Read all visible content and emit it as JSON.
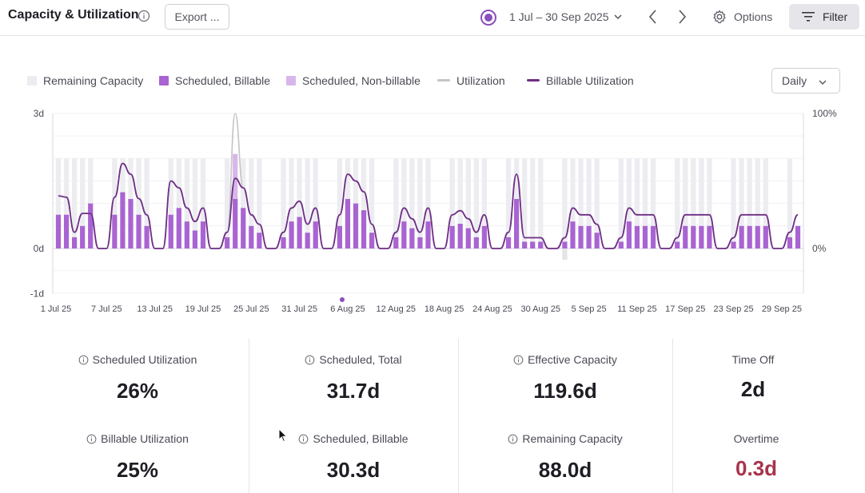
{
  "header": {
    "title": "Capacity & Utilization",
    "export_label": "Export ...",
    "date_range": "1 Jul – 30 Sep 2025",
    "options_label": "Options",
    "filter_label": "Filter"
  },
  "legend": {
    "remaining": "Remaining Capacity",
    "billable": "Scheduled, Billable",
    "nonbillable": "Scheduled, Non-billable",
    "utilization": "Utilization",
    "billable_util": "Billable Utilization"
  },
  "granularity": "Daily",
  "colors": {
    "remaining": "#ececf1",
    "billable": "#a964d2",
    "nonbillable": "#d8b6eb",
    "utilization": "#c4c4c8",
    "billable_util": "#6f2f86",
    "accent": "#8a4fbe",
    "overtime": "#a8334c"
  },
  "chart_data": {
    "type": "bar",
    "y_left_ticks": [
      "3d",
      "0d",
      "-1d"
    ],
    "y_right_ticks": [
      "100%",
      "0%"
    ],
    "ylim_left": [
      -1,
      3
    ],
    "ylim_right": [
      0,
      100
    ],
    "x_ticks": [
      "1 Jul 25",
      "7 Jul 25",
      "13 Jul 25",
      "19 Jul 25",
      "25 Jul 25",
      "31 Jul 25",
      "6 Aug 25",
      "12 Aug 25",
      "18 Aug 25",
      "24 Aug 25",
      "30 Aug 25",
      "5 Sep 25",
      "11 Sep 25",
      "17 Sep 25",
      "23 Sep 25",
      "29 Sep 25"
    ],
    "series": [
      {
        "name": "Remaining Capacity",
        "values": [
          2,
          2,
          2,
          2,
          2,
          0,
          0,
          2,
          2,
          2,
          2,
          2,
          0,
          0,
          2,
          2,
          2,
          2,
          2,
          0,
          0,
          2,
          2,
          2,
          2,
          2,
          0,
          0,
          2,
          2,
          2,
          2,
          2,
          0,
          0,
          2,
          2,
          2,
          2,
          2,
          0,
          0,
          2,
          2,
          2,
          2,
          2,
          0,
          0,
          2,
          2,
          2,
          2,
          2,
          0,
          0,
          2,
          2,
          2,
          2,
          2,
          0,
          0,
          2,
          2,
          2,
          2,
          2,
          0,
          0,
          2,
          2,
          2,
          2,
          2,
          0,
          0,
          2,
          2,
          2,
          2,
          2,
          0,
          0,
          2,
          2,
          2,
          2,
          2,
          0,
          0,
          2,
          2
        ]
      },
      {
        "name": "Scheduled, Billable",
        "values": [
          0.75,
          0.75,
          0.25,
          0.5,
          1,
          0,
          0,
          0.75,
          1.25,
          1.1,
          0.75,
          0.5,
          0,
          0,
          0.75,
          0.9,
          0.6,
          0.4,
          0.6,
          0,
          0,
          0.25,
          1.1,
          0.9,
          0.5,
          0.35,
          0,
          0,
          0.25,
          0.6,
          0.7,
          0.35,
          0.6,
          0,
          0,
          0.5,
          1.1,
          1,
          0.85,
          0.35,
          0,
          0,
          0.25,
          0.6,
          0.45,
          0.25,
          0.6,
          0,
          0,
          0.5,
          0.55,
          0.45,
          0.25,
          0.5,
          0,
          0,
          0.25,
          1.1,
          0.15,
          0.15,
          0.15,
          0,
          0,
          0.15,
          0.6,
          0.5,
          0.5,
          0.35,
          0,
          0,
          0.15,
          0.6,
          0.5,
          0.5,
          0.5,
          0,
          0,
          0.15,
          0.5,
          0.5,
          0.5,
          0.5,
          0,
          0,
          0.15,
          0.5,
          0.5,
          0.5,
          0.5,
          0,
          0,
          0.25,
          0.5
        ]
      },
      {
        "name": "Scheduled, Non-billable",
        "values": [
          0,
          0,
          0,
          0,
          0,
          0,
          0,
          0,
          0,
          0,
          0,
          0,
          0,
          0,
          0,
          0,
          0,
          0,
          0,
          0,
          0,
          0,
          1,
          0,
          0,
          0,
          0,
          0,
          0,
          0,
          0,
          0,
          0,
          0,
          0,
          0,
          0,
          0,
          0,
          0,
          0,
          0,
          0,
          0,
          0,
          0,
          0,
          0,
          0,
          0,
          0,
          0,
          0,
          0,
          0,
          0,
          0,
          0,
          0,
          0,
          0,
          0,
          0,
          0,
          0,
          0,
          0,
          0,
          0,
          0,
          0,
          0,
          0,
          0,
          0,
          0,
          0,
          0,
          0,
          0,
          0,
          0,
          0,
          0,
          0,
          0,
          0,
          0,
          0,
          0,
          0,
          0
        ]
      },
      {
        "name": "Utilization",
        "values": [
          39,
          38,
          12,
          26,
          26,
          0,
          0,
          38,
          63,
          55,
          37,
          25,
          0,
          0,
          50,
          45,
          30,
          20,
          30,
          0,
          0,
          12,
          100,
          45,
          25,
          18,
          0,
          0,
          12,
          30,
          35,
          18,
          30,
          0,
          0,
          25,
          55,
          50,
          42,
          18,
          0,
          0,
          12,
          30,
          22,
          12,
          30,
          0,
          0,
          25,
          28,
          22,
          12,
          25,
          0,
          0,
          12,
          55,
          8,
          8,
          8,
          0,
          0,
          8,
          30,
          25,
          25,
          18,
          0,
          0,
          8,
          30,
          25,
          25,
          25,
          0,
          0,
          8,
          25,
          25,
          25,
          25,
          0,
          0,
          8,
          25,
          25,
          25,
          25,
          0,
          0,
          12,
          25
        ]
      },
      {
        "name": "Billable Utilization",
        "values": [
          39,
          38,
          12,
          26,
          26,
          0,
          0,
          38,
          63,
          55,
          37,
          25,
          0,
          0,
          50,
          45,
          30,
          20,
          30,
          0,
          0,
          12,
          52,
          45,
          25,
          18,
          0,
          0,
          12,
          30,
          35,
          18,
          30,
          0,
          0,
          25,
          55,
          50,
          42,
          18,
          0,
          0,
          12,
          30,
          22,
          12,
          30,
          0,
          0,
          25,
          28,
          22,
          12,
          25,
          0,
          0,
          12,
          55,
          8,
          8,
          8,
          0,
          0,
          8,
          30,
          25,
          25,
          18,
          0,
          0,
          8,
          30,
          25,
          25,
          25,
          0,
          0,
          8,
          25,
          25,
          25,
          25,
          0,
          0,
          8,
          25,
          25,
          25,
          25,
          0,
          0,
          12,
          25
        ]
      }
    ]
  },
  "stats": [
    {
      "label": "Scheduled Utilization",
      "value": "26%",
      "info": true
    },
    {
      "label": "Billable Utilization",
      "value": "25%",
      "info": true
    },
    {
      "label": "Scheduled, Total",
      "value": "31.7d",
      "info": true
    },
    {
      "label": "Scheduled, Billable",
      "value": "30.3d",
      "info": true
    },
    {
      "label": "Effective Capacity",
      "value": "119.6d",
      "info": true
    },
    {
      "label": "Remaining Capacity",
      "value": "88.0d",
      "info": true
    },
    {
      "label": "Time Off",
      "value": "2d",
      "info": false
    },
    {
      "label": "Overtime",
      "value": "0.3d",
      "info": false
    }
  ]
}
